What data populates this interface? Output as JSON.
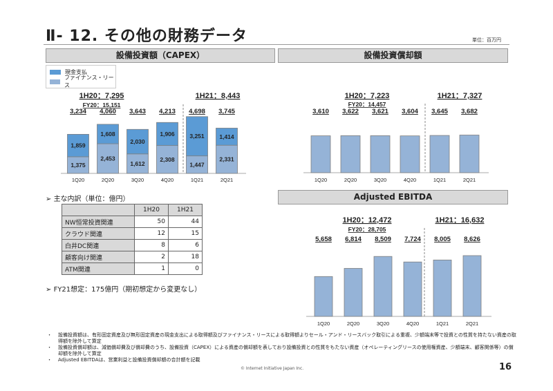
{
  "page": {
    "title": "Ⅱ- 12.  その他の財務データ",
    "unit": "単位：百万円",
    "page_number": "16",
    "copyright": "© Internet Initiative Japan Inc."
  },
  "colors": {
    "cash": "#5b9bd5",
    "finance_lease": "#95b3d7",
    "header_bg": "#d9d9d9"
  },
  "capex_panel": {
    "header": "設備投資額（CAPEX）",
    "legend": [
      "現金支払",
      "ファイナンス・リース"
    ],
    "summary": {
      "h1_20": "1H20：7,295",
      "fy20": "FY20：15,151",
      "h1_21": "1H21：8,443"
    },
    "breakdown": {
      "heading": "主な内訳（単位：億円）",
      "columns": [
        "",
        "1H20",
        "1H21"
      ],
      "rows": [
        {
          "label": "NW恒常投資関連",
          "h1_20": "50",
          "h1_21": "44"
        },
        {
          "label": "クラウド関連",
          "h1_20": "12",
          "h1_21": "15"
        },
        {
          "label": "白井DC関連",
          "h1_20": "8",
          "h1_21": "6"
        },
        {
          "label": "顧客向け関連",
          "h1_20": "2",
          "h1_21": "18"
        },
        {
          "label": "ATM関連",
          "h1_20": "1",
          "h1_21": "0"
        }
      ],
      "forecast": "FY21想定：175億円（期初想定から変更なし）"
    }
  },
  "depr_panel": {
    "header": "設備投資償却額",
    "summary": {
      "h1_20": "1H20：7,223",
      "fy20": "FY20：14,457",
      "h1_21": "1H21：7,327"
    }
  },
  "ebitda_panel": {
    "header": "Adjusted EBITDA",
    "summary": {
      "h1_20": "1H20：12,472",
      "fy20": "FY20：28,705",
      "h1_21": "1H21：16,632"
    }
  },
  "chart_data": [
    {
      "type": "bar",
      "stacked": true,
      "title": "設備投資額（CAPEX）",
      "categories": [
        "1Q20",
        "2Q20",
        "3Q20",
        "4Q20",
        "1Q21",
        "2Q21"
      ],
      "series": [
        {
          "name": "ファイナンス・リース",
          "values": [
            1375,
            2453,
            1612,
            2308,
            1447,
            2331
          ]
        },
        {
          "name": "現金支払",
          "values": [
            1859,
            1608,
            2030,
            1906,
            3251,
            1414
          ]
        }
      ],
      "totals": [
        "3,234",
        "4,060",
        "3,643",
        "4,213",
        "4,698",
        "3,745"
      ],
      "totals_values": [
        3234,
        4060,
        3643,
        4213,
        4698,
        3745
      ],
      "ylim": [
        0,
        5000
      ],
      "legend": "top-left",
      "divider_after": "4Q20"
    },
    {
      "type": "bar",
      "title": "設備投資償却額",
      "categories": [
        "1Q20",
        "2Q20",
        "3Q20",
        "4Q20",
        "1Q21",
        "2Q21"
      ],
      "values": [
        3610,
        3622,
        3621,
        3604,
        3645,
        3682
      ],
      "labels": [
        "3,610",
        "3,622",
        "3,621",
        "3,604",
        "3,645",
        "3,682"
      ],
      "ylim": [
        0,
        5000
      ],
      "divider_after": "4Q20"
    },
    {
      "type": "bar",
      "title": "Adjusted EBITDA",
      "categories": [
        "1Q20",
        "2Q20",
        "3Q20",
        "4Q20",
        "1Q21",
        "2Q21"
      ],
      "values": [
        5658,
        6814,
        8509,
        7724,
        8005,
        8626
      ],
      "labels": [
        "5,658",
        "6,814",
        "8,509",
        "7,724",
        "8,005",
        "8,626"
      ],
      "ylim": [
        0,
        10500
      ],
      "divider_after": "4Q20"
    }
  ],
  "notes": [
    "設備投資額は、有形固定資産及び無形固定資産の現金支出による取得額及びファイナンス・リースによる取得額よりセール・アンド・リースバック取引による重複、少額端末等で投資との性質を持たない資産の取得額を除外して算定",
    "設備投資償却額は、減価償却費及び償却費のうち、設備投資（CAPEX）による資産の償却額を表しており設備投資との性質をもたない資産（オペレーティングリースの使用権資産、少額端末、顧客関係等）の償却額を除外して算定",
    "Adjusted EBITDAは、営業利益と設備投資償却額の合計額を記載"
  ]
}
